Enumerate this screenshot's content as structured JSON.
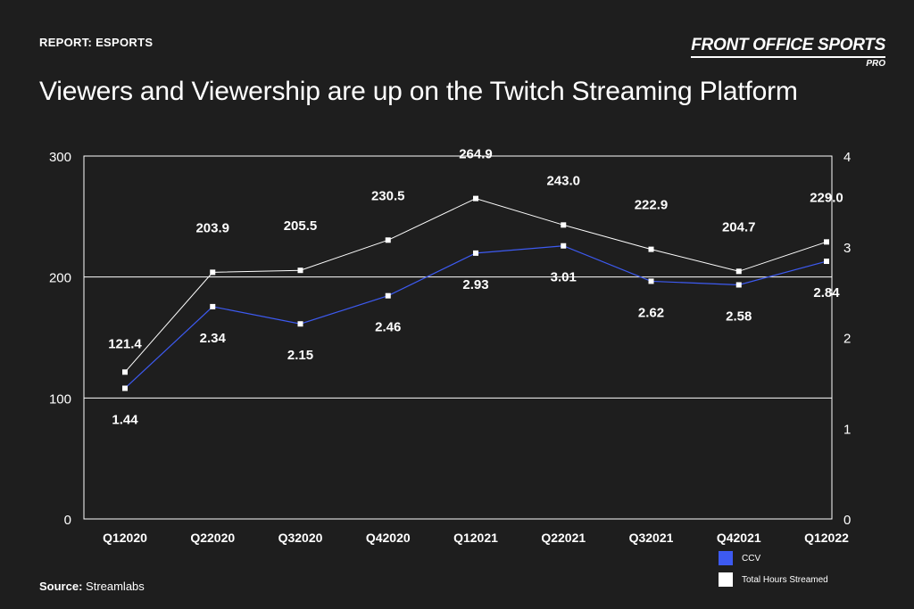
{
  "header": {
    "report_tag": "REPORT: ESPORTS",
    "brand_name": "FRONT OFFICE SPORTS",
    "brand_sub": "PRO",
    "title": "Viewers and Viewership are up on the Twitch Streaming Platform"
  },
  "footer": {
    "source_label": "Source:",
    "source_value": "Streamlabs"
  },
  "chart_data": {
    "type": "line",
    "categories": [
      "Q12020",
      "Q22020",
      "Q32020",
      "Q42020",
      "Q12021",
      "Q22021",
      "Q32021",
      "Q42021",
      "Q12022"
    ],
    "series": [
      {
        "name": "Total Hours Streamed",
        "axis": "left",
        "color": "#ffffff",
        "values": [
          121.4,
          203.9,
          205.5,
          230.5,
          264.9,
          243.0,
          222.9,
          204.7,
          229.0
        ],
        "labels": [
          "121.4",
          "203.9",
          "205.5",
          "230.5",
          "264.9",
          "243.0",
          "222.9",
          "204.7",
          "229.0"
        ]
      },
      {
        "name": "CCV",
        "axis": "right",
        "color": "#3d5af1",
        "values": [
          1.44,
          2.34,
          2.15,
          2.46,
          2.93,
          3.01,
          2.62,
          2.58,
          2.84
        ],
        "labels": [
          "1.44",
          "2.34",
          "2.15",
          "2.46",
          "2.93",
          "3.01",
          "2.62",
          "2.58",
          "2.84"
        ]
      }
    ],
    "y_left": {
      "ylim": [
        0,
        300
      ],
      "ticks": [
        "0",
        "100",
        "200",
        "300"
      ]
    },
    "y_right": {
      "ylim": [
        0,
        4
      ],
      "ticks": [
        "0",
        "1",
        "2",
        "3",
        "4"
      ]
    },
    "gridlines_left": [
      100,
      200
    ],
    "grid": true,
    "legend": {
      "placement": "bottom-right",
      "items": [
        {
          "label": "CCV",
          "color": "#3d5af1"
        },
        {
          "label": "Total Hours Streamed",
          "color": "#ffffff"
        }
      ]
    }
  }
}
